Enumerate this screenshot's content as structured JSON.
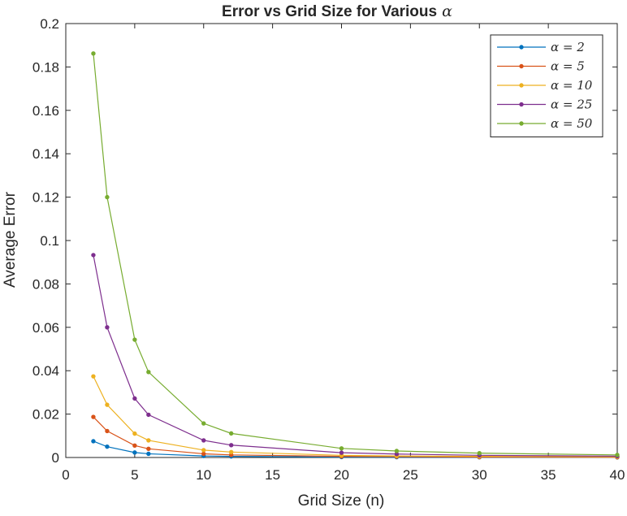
{
  "chart_data": {
    "type": "line",
    "title": "Error vs Grid Size for Various",
    "title_symbol": "α",
    "xlabel": "Grid Size (n)",
    "ylabel": "Average Error",
    "xlim": [
      0,
      40
    ],
    "ylim": [
      0,
      0.2
    ],
    "xticks": [
      0,
      5,
      10,
      15,
      20,
      25,
      30,
      35,
      40
    ],
    "yticks": [
      0,
      0.02,
      0.04,
      0.06,
      0.08,
      0.1,
      0.12,
      0.14,
      0.16,
      0.18,
      0.2
    ],
    "xtick_labels": [
      "0",
      "5",
      "10",
      "15",
      "20",
      "25",
      "30",
      "35",
      "40"
    ],
    "ytick_labels": [
      "0",
      "0.02",
      "0.04",
      "0.06",
      "0.08",
      "0.1",
      "0.12",
      "0.14",
      "0.16",
      "0.18",
      "0.2"
    ],
    "grid": false,
    "legend_position": "top-right",
    "x": [
      2,
      3,
      5,
      6,
      10,
      12,
      20,
      24,
      30,
      40
    ],
    "series": [
      {
        "name": "α = 2",
        "color": "#0072BD",
        "values": [
          0.0075,
          0.005,
          0.0023,
          0.0017,
          0.0007,
          0.0005,
          0.0002,
          0.00015,
          0.0001,
          5e-05
        ]
      },
      {
        "name": "α = 5",
        "color": "#D95319",
        "values": [
          0.0187,
          0.0122,
          0.0055,
          0.004,
          0.0017,
          0.0012,
          0.0005,
          0.0004,
          0.0002,
          0.0001
        ]
      },
      {
        "name": "α = 10",
        "color": "#EDB120",
        "values": [
          0.0374,
          0.0243,
          0.011,
          0.0079,
          0.0034,
          0.0025,
          0.001,
          0.0007,
          0.0005,
          0.0003
        ]
      },
      {
        "name": "α = 25",
        "color": "#7E2F8E",
        "values": [
          0.0933,
          0.06,
          0.0272,
          0.0197,
          0.0079,
          0.0057,
          0.0022,
          0.0016,
          0.001,
          0.0006
        ]
      },
      {
        "name": "α = 50",
        "color": "#77AC30",
        "values": [
          0.1862,
          0.12,
          0.0543,
          0.0394,
          0.0157,
          0.0111,
          0.0042,
          0.003,
          0.002,
          0.0012
        ]
      }
    ]
  }
}
